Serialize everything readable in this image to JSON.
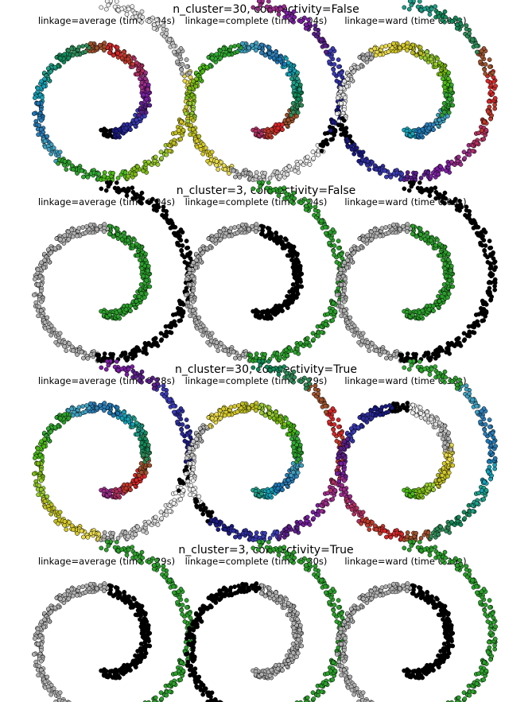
{
  "chart_data": {
    "type": "scatter",
    "colormap": [
      "#000000",
      "#1a1a80",
      "#2d2d9e",
      "#3b3bb5",
      "#5a1f8a",
      "#7b1fa2",
      "#9b2d8a",
      "#b03060",
      "#c0392b",
      "#d62728",
      "#a0522d",
      "#2e8b57",
      "#138a5a",
      "#1f9e89",
      "#17a2b8",
      "#1f77b4",
      "#2c7fb8",
      "#40a0c0",
      "#2ca02c",
      "#33aa33",
      "#4cbb17",
      "#7cbb17",
      "#9acd32",
      "#bcbd22",
      "#d4c82a",
      "#e6d84c",
      "#b0b0b0",
      "#c8c8c8",
      "#e0e0e0",
      "#f0f0f0"
    ],
    "rows": [
      {
        "title": "n_cluster=30, connectivity=False",
        "n_clusters": 30,
        "connectivity": false,
        "panels": [
          {
            "title": "linkage=average (time 0.04s)",
            "linkage": "average",
            "time_s": 0.04
          },
          {
            "title": "linkage=complete (time 0.04s)",
            "linkage": "complete",
            "time_s": 0.04
          },
          {
            "title": "linkage=ward (time 0.06s)",
            "linkage": "ward",
            "time_s": 0.06
          }
        ]
      },
      {
        "title": "n_cluster=3, connectivity=False",
        "n_clusters": 3,
        "connectivity": false,
        "panels": [
          {
            "title": "linkage=average (time 0.04s)",
            "linkage": "average",
            "time_s": 0.04,
            "cluster_colors": [
              "#2ca02c",
              "#b0b0b0",
              "#000000"
            ]
          },
          {
            "title": "linkage=complete (time 0.04s)",
            "linkage": "complete",
            "time_s": 0.04,
            "cluster_colors": [
              "#000000",
              "#b0b0b0",
              "#2ca02c"
            ]
          },
          {
            "title": "linkage=ward (time 0.05s)",
            "linkage": "ward",
            "time_s": 0.05,
            "cluster_colors": [
              "#2ca02c",
              "#b0b0b0",
              "#000000"
            ]
          }
        ]
      },
      {
        "title": "n_cluster=30, connectivity=True",
        "n_clusters": 30,
        "connectivity": true,
        "panels": [
          {
            "title": "linkage=average (time 0.28s)",
            "linkage": "average",
            "time_s": 0.28
          },
          {
            "title": "linkage=complete (time 0.29s)",
            "linkage": "complete",
            "time_s": 0.29
          },
          {
            "title": "linkage=ward (time 0.38s)",
            "linkage": "ward",
            "time_s": 0.38
          }
        ]
      },
      {
        "title": "n_cluster=3, connectivity=True",
        "n_clusters": 3,
        "connectivity": true,
        "panels": [
          {
            "title": "linkage=average (time 0.29s)",
            "linkage": "average",
            "time_s": 0.29,
            "cluster_colors": [
              "#000000",
              "#b0b0b0",
              "#2ca02c"
            ]
          },
          {
            "title": "linkage=complete (time 0.30s)",
            "linkage": "complete",
            "time_s": 0.3,
            "cluster_colors": [
              "#b0b0b0",
              "#000000",
              "#2ca02c"
            ]
          },
          {
            "title": "linkage=ward (time 0.29s)",
            "linkage": "ward",
            "time_s": 0.29,
            "cluster_colors": [
              "#000000",
              "#b0b0b0",
              "#2ca02c"
            ]
          }
        ]
      }
    ],
    "axes": "off",
    "grid": false,
    "legend": "none"
  }
}
